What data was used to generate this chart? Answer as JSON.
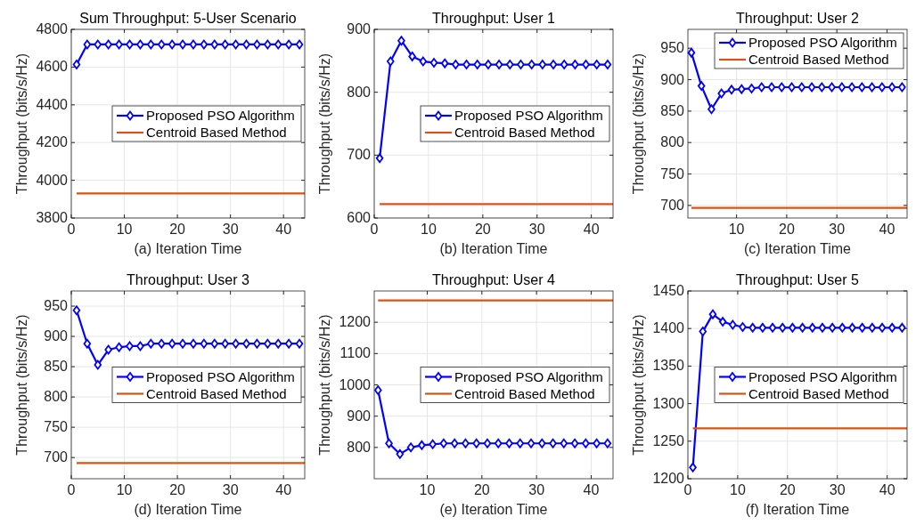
{
  "chart_data": [
    {
      "type": "line",
      "title": "Sum Throughput: 5-User Scenario",
      "xlabel": "(a) Iteration Time",
      "ylabel": "Throughput (bits/s/Hz)",
      "xlim": [
        0,
        44
      ],
      "xticks": [
        0,
        10,
        20,
        30,
        40
      ],
      "ylim": [
        3800,
        4800
      ],
      "yticks": [
        3800,
        4000,
        4200,
        4400,
        4600,
        4800
      ],
      "grid": true,
      "legend": "right",
      "line_style": "solid",
      "series": [
        {
          "name": "Proposed PSO Algorithm",
          "color": "#0000ff",
          "marker": "diamond",
          "x": [
            1,
            3,
            5,
            7,
            9,
            11,
            13,
            15,
            17,
            19,
            21,
            23,
            25,
            27,
            29,
            31,
            33,
            35,
            37,
            39,
            41,
            43
          ],
          "values": [
            4614,
            4720,
            4720,
            4720,
            4720,
            4720,
            4720,
            4720,
            4720,
            4720,
            4720,
            4720,
            4720,
            4720,
            4720,
            4720,
            4720,
            4720,
            4720,
            4720,
            4720,
            4720
          ]
        },
        {
          "name": "Centroid Based Method",
          "color": "#d95319",
          "marker": "none",
          "x": [
            1,
            44
          ],
          "values": [
            3930,
            3930
          ]
        }
      ]
    },
    {
      "type": "line",
      "title": "Throughput: User 1",
      "xlabel": "(b) Iteration Time",
      "ylabel": "Throughput (bits/s/Hz)",
      "xlim": [
        0,
        44
      ],
      "xticks": [
        0,
        10,
        20,
        30,
        40
      ],
      "ylim": [
        600,
        900
      ],
      "yticks": [
        600,
        700,
        800,
        900
      ],
      "grid": true,
      "legend": "right",
      "line_style": "solid",
      "series": [
        {
          "name": "Proposed PSO Algorithm",
          "color": "#0000ff",
          "marker": "diamond",
          "x": [
            1,
            3,
            5,
            7,
            9,
            11,
            13,
            15,
            17,
            19,
            21,
            23,
            25,
            27,
            29,
            31,
            33,
            35,
            37,
            39,
            41,
            43
          ],
          "values": [
            695,
            849,
            882,
            857,
            849,
            847,
            846,
            844,
            844,
            844,
            844,
            844,
            844,
            844,
            844,
            844,
            844,
            844,
            844,
            844,
            844,
            844
          ]
        },
        {
          "name": "Centroid Based Method",
          "color": "#d95319",
          "marker": "none",
          "x": [
            1,
            44
          ],
          "values": [
            622,
            622
          ]
        }
      ]
    },
    {
      "type": "line",
      "title": "Throughput: User 2",
      "xlabel": "(c) Iteration Time",
      "ylabel": "Throughput (bits/s/Hz)",
      "xlim": [
        0.3,
        44
      ],
      "xticks": [
        10,
        20,
        30,
        40
      ],
      "ylim": [
        680,
        980
      ],
      "yticks": [
        700,
        750,
        800,
        850,
        900,
        950
      ],
      "grid": true,
      "legend": "top right",
      "line_style": "solid",
      "series": [
        {
          "name": "Proposed PSO Algorithm",
          "color": "#0000ff",
          "marker": "diamond",
          "x": [
            1,
            3,
            5,
            7,
            9,
            11,
            13,
            15,
            17,
            19,
            21,
            23,
            25,
            27,
            29,
            31,
            33,
            35,
            37,
            39,
            41,
            43
          ],
          "values": [
            943,
            890,
            853,
            878,
            884,
            885,
            886,
            888,
            888,
            888,
            888,
            888,
            888,
            888,
            888,
            888,
            888,
            888,
            888,
            888,
            888,
            888
          ]
        },
        {
          "name": "Centroid Based Method",
          "color": "#d95319",
          "marker": "none",
          "x": [
            1,
            44
          ],
          "values": [
            696,
            696
          ]
        }
      ]
    },
    {
      "type": "line",
      "title": "Throughput: User 3",
      "xlabel": "(d) Iteration Time",
      "ylabel": "Throughput (bits/s/Hz)",
      "xlim": [
        0,
        44
      ],
      "xticks": [
        0,
        10,
        20,
        30,
        40
      ],
      "ylim": [
        665,
        975
      ],
      "yticks": [
        700,
        750,
        800,
        850,
        900,
        950
      ],
      "grid": true,
      "legend": "right",
      "line_style": "solid",
      "series": [
        {
          "name": "Proposed PSO Algorithm",
          "color": "#0000ff",
          "marker": "diamond",
          "x": [
            1,
            3,
            5,
            7,
            9,
            11,
            13,
            15,
            17,
            19,
            21,
            23,
            25,
            27,
            29,
            31,
            33,
            35,
            37,
            39,
            41,
            43
          ],
          "values": [
            943,
            888,
            853,
            878,
            882,
            884,
            884,
            888,
            888,
            888,
            888,
            888,
            888,
            888,
            888,
            888,
            888,
            888,
            888,
            888,
            888,
            888
          ]
        },
        {
          "name": "Centroid Based Method",
          "color": "#d95319",
          "marker": "none",
          "x": [
            1,
            44
          ],
          "values": [
            691,
            691
          ]
        }
      ]
    },
    {
      "type": "line",
      "title": "Throughput: User 4",
      "xlabel": "(e) Iteration Time",
      "ylabel": "Throughput (bits/s/Hz)",
      "xlim": [
        0.3,
        44
      ],
      "xticks": [
        10,
        20,
        30,
        40
      ],
      "ylim": [
        700,
        1300
      ],
      "yticks": [
        800,
        900,
        1000,
        1100,
        1200
      ],
      "grid": true,
      "legend": "right",
      "line_style": "solid",
      "series": [
        {
          "name": "Proposed PSO Algorithm",
          "color": "#0000ff",
          "marker": "diamond",
          "x": [
            1,
            3,
            5,
            7,
            9,
            11,
            13,
            15,
            17,
            19,
            21,
            23,
            25,
            27,
            29,
            31,
            33,
            35,
            37,
            39,
            41,
            43
          ],
          "values": [
            983,
            813,
            779,
            800,
            807,
            810,
            813,
            813,
            813,
            813,
            813,
            813,
            813,
            813,
            813,
            813,
            813,
            813,
            813,
            813,
            813,
            813
          ]
        },
        {
          "name": "Centroid Based Method",
          "color": "#d95319",
          "marker": "none",
          "x": [
            1,
            44
          ],
          "values": [
            1270,
            1270
          ]
        }
      ]
    },
    {
      "type": "line",
      "title": "Throughput: User 5",
      "xlabel": "(f) Iteration Time",
      "ylabel": "Throughput (bits/s/Hz)",
      "xlim": [
        0,
        44
      ],
      "xticks": [
        0,
        10,
        20,
        30,
        40
      ],
      "ylim": [
        1200,
        1450
      ],
      "yticks": [
        1200,
        1250,
        1300,
        1350,
        1400,
        1450
      ],
      "grid": true,
      "legend": "right",
      "line_style": "solid",
      "series": [
        {
          "name": "Proposed PSO Algorithm",
          "color": "#0000ff",
          "marker": "diamond",
          "x": [
            1,
            3,
            5,
            7,
            9,
            11,
            13,
            15,
            17,
            19,
            21,
            23,
            25,
            27,
            29,
            31,
            33,
            35,
            37,
            39,
            41,
            43
          ],
          "values": [
            1215,
            1396,
            1419,
            1409,
            1405,
            1402,
            1401,
            1401,
            1401,
            1401,
            1401,
            1401,
            1401,
            1401,
            1401,
            1401,
            1401,
            1401,
            1401,
            1401,
            1401,
            1401
          ]
        },
        {
          "name": "Centroid Based Method",
          "color": "#d95319",
          "marker": "none",
          "x": [
            1,
            44
          ],
          "values": [
            1267,
            1267
          ]
        }
      ]
    }
  ]
}
